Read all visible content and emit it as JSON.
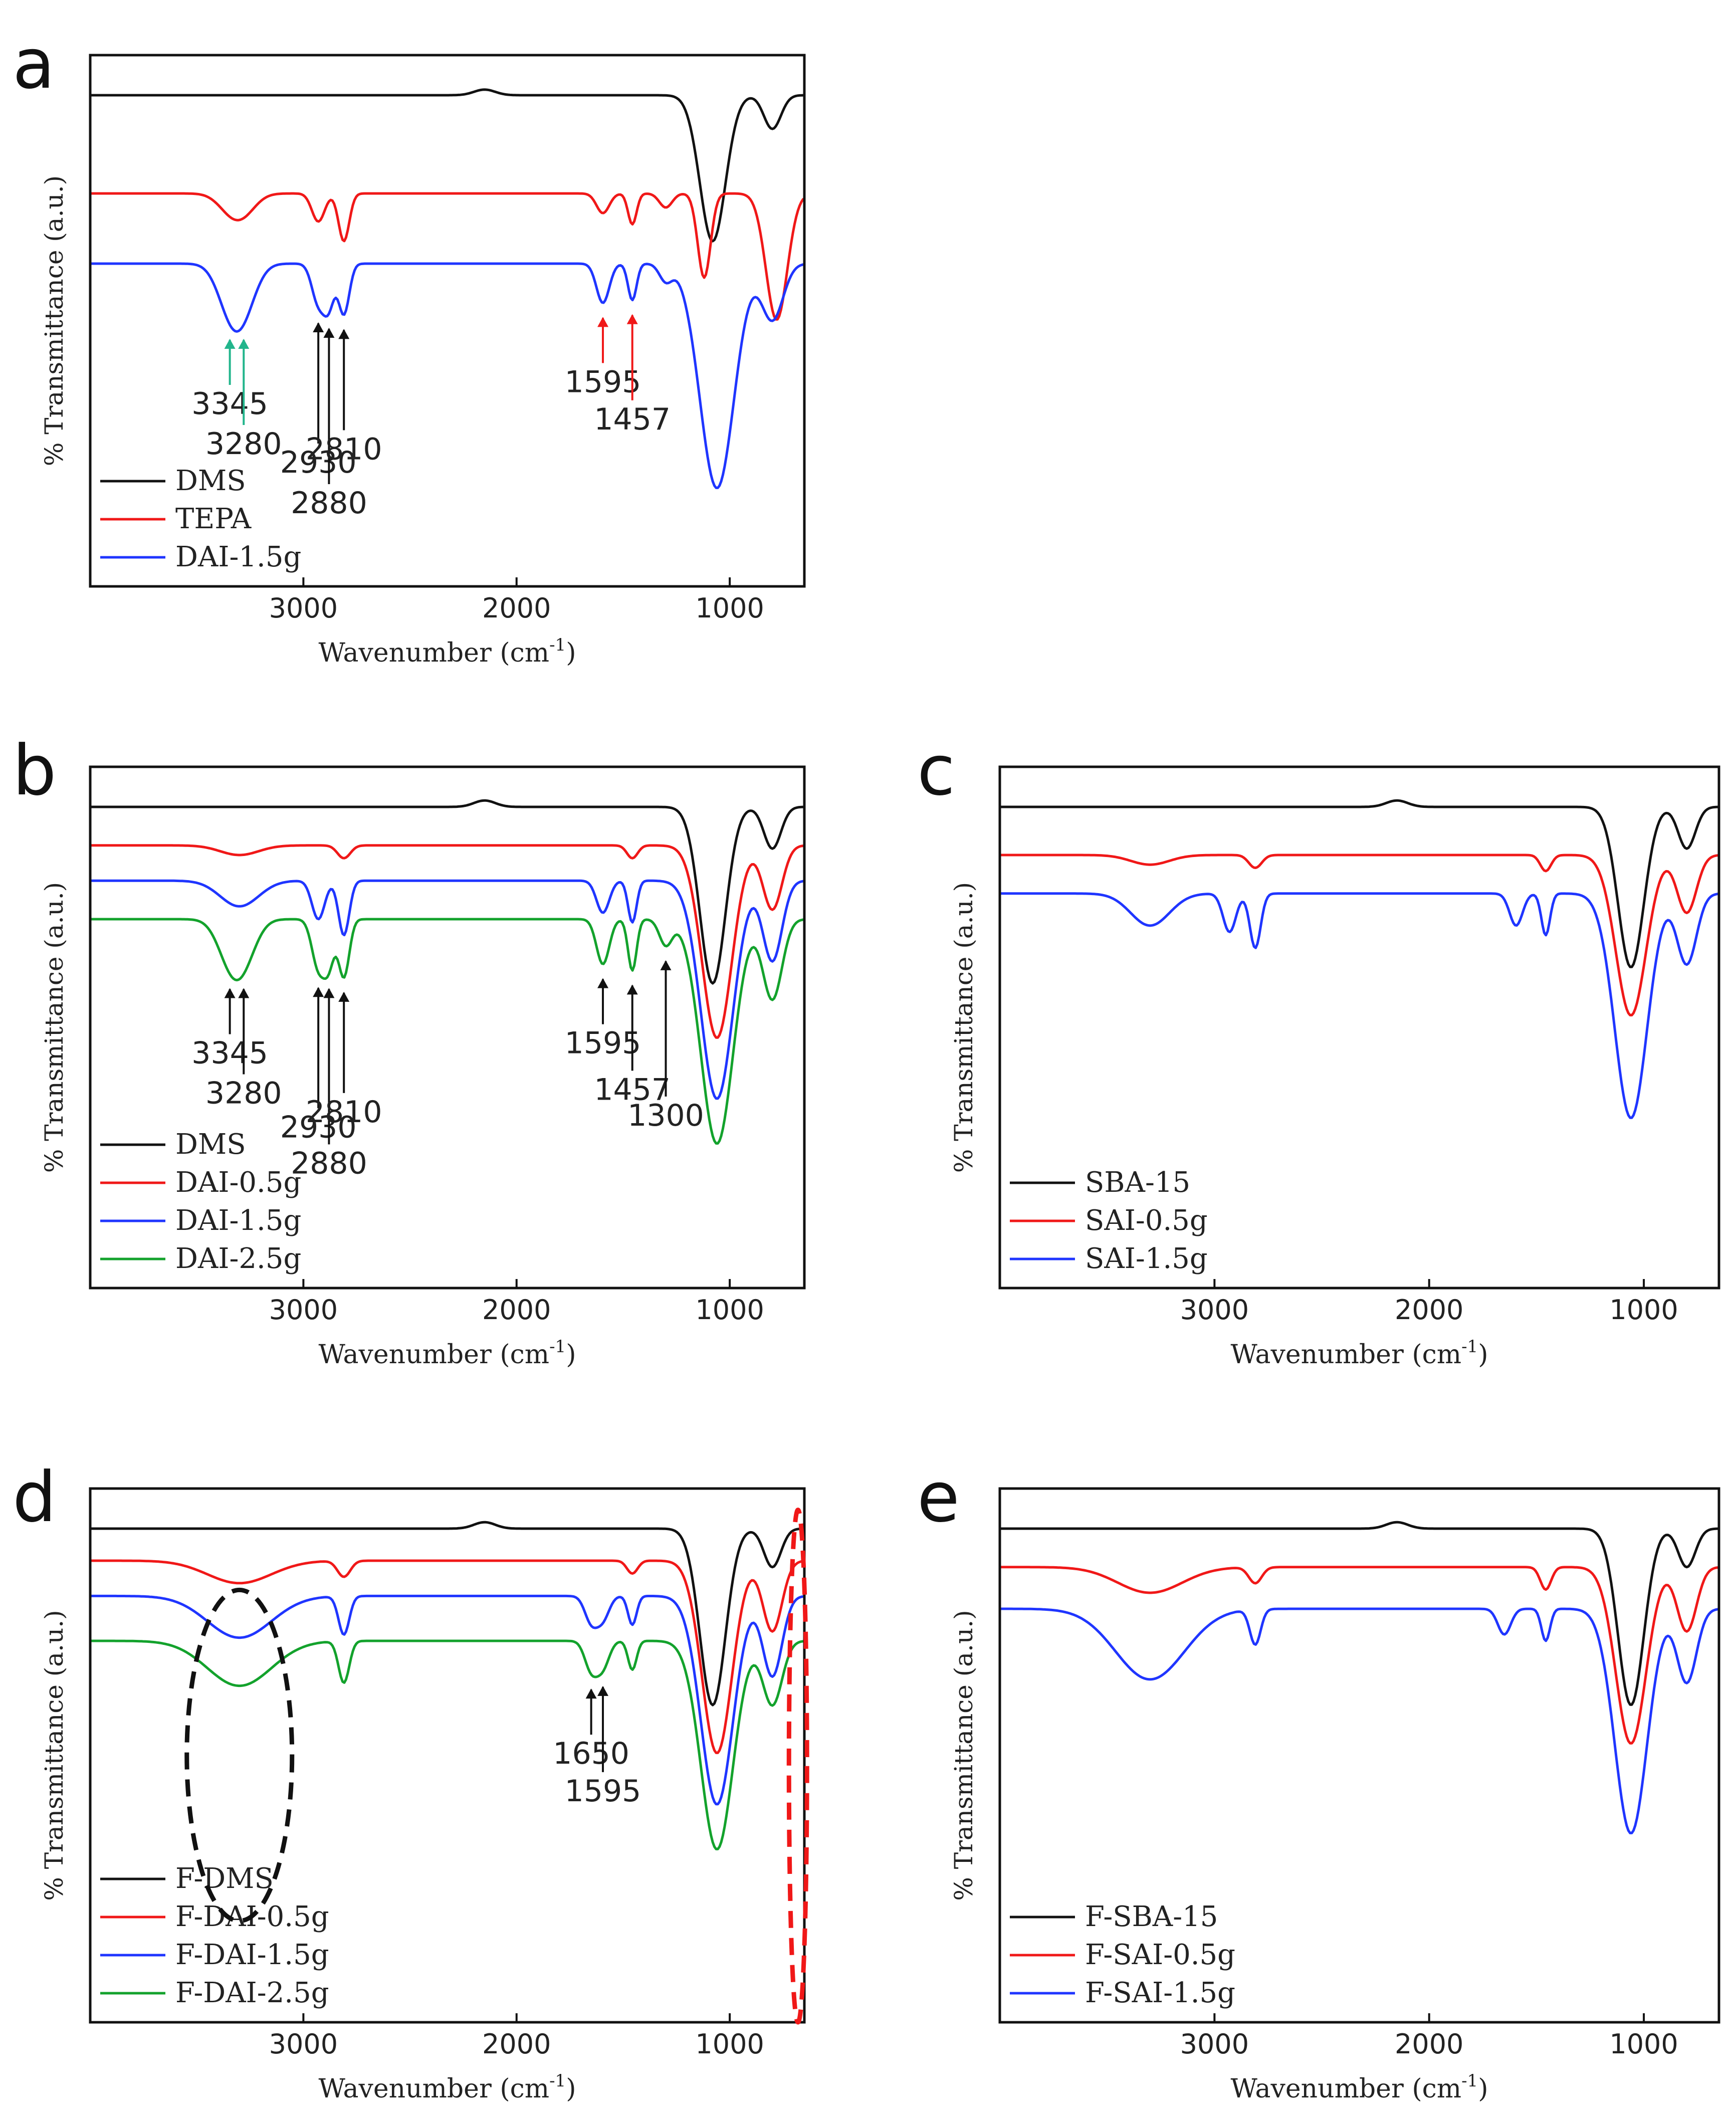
{
  "figure": {
    "x_axis_label": "Wavenumber",
    "x_axis_unit": "(cm",
    "x_axis_unit_sup": "-1",
    "x_axis_unit_close": ")",
    "y_axis_label": "% Transmittance (a.u.)"
  },
  "colors": {
    "black": "#111111",
    "red": "#f01818",
    "blue": "#1f35ff",
    "green": "#13a22c",
    "teal": "#22b58c",
    "ellipse_black": "#111111",
    "ellipse_red": "#f01818"
  },
  "chart_data": [
    {
      "panel": "a",
      "type": "line",
      "xlabel": "Wavenumber (cm-1)",
      "ylabel": "% Transmittance (a.u.)",
      "xlim": [
        4000,
        650
      ],
      "x_reversed": true,
      "xticks": [
        3000,
        2000,
        1000
      ],
      "series": [
        {
          "name": "DMS",
          "color": "black",
          "offset": 0.0,
          "peaks": [
            [
              1080,
              0.52,
              60
            ],
            [
              800,
              0.12,
              40
            ],
            [
              2150,
              -0.02,
              50
            ]
          ]
        },
        {
          "name": "TEPA",
          "color": "red",
          "offset": 0.35,
          "peaks": [
            [
              3345,
              0.05,
              60
            ],
            [
              3280,
              0.06,
              60
            ],
            [
              2930,
              0.1,
              30
            ],
            [
              2810,
              0.17,
              25
            ],
            [
              1595,
              0.07,
              30
            ],
            [
              1457,
              0.11,
              20
            ],
            [
              1300,
              0.05,
              30
            ],
            [
              1120,
              0.3,
              30
            ],
            [
              780,
              0.45,
              50
            ]
          ]
        },
        {
          "name": "DAI-1.5g",
          "color": "blue",
          "offset": 0.6,
          "peaks": [
            [
              3345,
              0.14,
              60
            ],
            [
              3280,
              0.14,
              60
            ],
            [
              2930,
              0.14,
              30
            ],
            [
              2880,
              0.14,
              25
            ],
            [
              2810,
              0.18,
              25
            ],
            [
              1595,
              0.14,
              30
            ],
            [
              1457,
              0.13,
              20
            ],
            [
              1300,
              0.06,
              30
            ],
            [
              1060,
              0.8,
              80
            ],
            [
              800,
              0.2,
              50
            ]
          ]
        }
      ],
      "annotations": [
        {
          "label": "3345",
          "x": 3345,
          "color": "teal"
        },
        {
          "label": "3280",
          "x": 3280,
          "color": "teal"
        },
        {
          "label": "2930",
          "x": 2930,
          "color": "black"
        },
        {
          "label": "2880",
          "x": 2880,
          "color": "black"
        },
        {
          "label": "2810",
          "x": 2810,
          "color": "black"
        },
        {
          "label": "1595",
          "x": 1595,
          "color": "red"
        },
        {
          "label": "1457",
          "x": 1457,
          "color": "red"
        }
      ],
      "legend": [
        "DMS",
        "TEPA",
        "DAI-1.5g"
      ],
      "legend_position": "bottom-left"
    },
    {
      "panel": "b",
      "type": "line",
      "xlabel": "Wavenumber (cm-1)",
      "ylabel": "% Transmittance (a.u.)",
      "xlim": [
        4000,
        650
      ],
      "x_reversed": true,
      "xticks": [
        3000,
        2000,
        1000
      ],
      "series": [
        {
          "name": "DMS",
          "color": "black",
          "offset": 0.0,
          "peaks": [
            [
              1080,
              0.55,
              60
            ],
            [
              800,
              0.13,
              40
            ],
            [
              2150,
              -0.02,
              50
            ]
          ]
        },
        {
          "name": "DAI-0.5g",
          "color": "red",
          "offset": 0.12,
          "peaks": [
            [
              3300,
              0.03,
              90
            ],
            [
              2810,
              0.04,
              30
            ],
            [
              1457,
              0.04,
              25
            ],
            [
              1060,
              0.6,
              70
            ],
            [
              800,
              0.2,
              45
            ]
          ]
        },
        {
          "name": "DAI-1.5g",
          "color": "blue",
          "offset": 0.23,
          "peaks": [
            [
              3300,
              0.08,
              90
            ],
            [
              2930,
              0.12,
              30
            ],
            [
              2810,
              0.17,
              25
            ],
            [
              1595,
              0.1,
              30
            ],
            [
              1457,
              0.13,
              20
            ],
            [
              1060,
              0.68,
              75
            ],
            [
              800,
              0.25,
              45
            ]
          ]
        },
        {
          "name": "DAI-2.5g",
          "color": "green",
          "offset": 0.35,
          "peaks": [
            [
              3345,
              0.11,
              60
            ],
            [
              3280,
              0.11,
              60
            ],
            [
              2930,
              0.15,
              30
            ],
            [
              2880,
              0.13,
              25
            ],
            [
              2810,
              0.18,
              25
            ],
            [
              1595,
              0.14,
              30
            ],
            [
              1457,
              0.16,
              20
            ],
            [
              1300,
              0.08,
              30
            ],
            [
              1060,
              0.7,
              75
            ],
            [
              800,
              0.25,
              45
            ]
          ]
        }
      ],
      "annotations": [
        {
          "label": "3345",
          "x": 3345,
          "color": "black"
        },
        {
          "label": "3280",
          "x": 3280,
          "color": "black"
        },
        {
          "label": "2930",
          "x": 2930,
          "color": "black"
        },
        {
          "label": "2880",
          "x": 2880,
          "color": "black"
        },
        {
          "label": "2810",
          "x": 2810,
          "color": "black"
        },
        {
          "label": "1595",
          "x": 1595,
          "color": "black"
        },
        {
          "label": "1457",
          "x": 1457,
          "color": "black"
        },
        {
          "label": "1300",
          "x": 1300,
          "color": "black"
        }
      ],
      "legend": [
        "DMS",
        "DAI-0.5g",
        "DAI-1.5g",
        "DAI-2.5g"
      ],
      "legend_position": "bottom-left"
    },
    {
      "panel": "c",
      "type": "line",
      "xlabel": "Wavenumber (cm-1)",
      "ylabel": "% Transmittance (a.u.)",
      "xlim": [
        4000,
        650
      ],
      "x_reversed": true,
      "xticks": [
        3000,
        2000,
        1000
      ],
      "series": [
        {
          "name": "SBA-15",
          "color": "black",
          "offset": 0.0,
          "peaks": [
            [
              1060,
              0.5,
              60
            ],
            [
              800,
              0.13,
              40
            ],
            [
              2150,
              -0.02,
              50
            ]
          ]
        },
        {
          "name": "SAI-0.5g",
          "color": "red",
          "offset": 0.15,
          "peaks": [
            [
              3300,
              0.03,
              90
            ],
            [
              2810,
              0.04,
              30
            ],
            [
              1457,
              0.05,
              25
            ],
            [
              1060,
              0.5,
              70
            ],
            [
              800,
              0.18,
              45
            ]
          ]
        },
        {
          "name": "SAI-1.5g",
          "color": "blue",
          "offset": 0.27,
          "peaks": [
            [
              3300,
              0.1,
              90
            ],
            [
              2930,
              0.12,
              30
            ],
            [
              2810,
              0.17,
              25
            ],
            [
              1595,
              0.1,
              30
            ],
            [
              1457,
              0.13,
              20
            ],
            [
              1060,
              0.7,
              75
            ],
            [
              800,
              0.22,
              45
            ]
          ]
        }
      ],
      "annotations": [],
      "legend": [
        "SBA-15",
        "SAI-0.5g",
        "SAI-1.5g"
      ],
      "legend_position": "bottom-left"
    },
    {
      "panel": "d",
      "type": "line",
      "xlabel": "Wavenumber (cm-1)",
      "ylabel": "% Transmittance (a.u.)",
      "xlim": [
        4000,
        650
      ],
      "x_reversed": true,
      "xticks": [
        3000,
        2000,
        1000
      ],
      "series": [
        {
          "name": "F-DMS",
          "color": "black",
          "offset": 0.0,
          "peaks": [
            [
              1080,
              0.55,
              60
            ],
            [
              800,
              0.12,
              40
            ],
            [
              2150,
              -0.02,
              50
            ]
          ]
        },
        {
          "name": "F-DAI-0.5g",
          "color": "red",
          "offset": 0.1,
          "peaks": [
            [
              3300,
              0.07,
              150
            ],
            [
              2810,
              0.05,
              30
            ],
            [
              1457,
              0.04,
              25
            ],
            [
              1060,
              0.6,
              70
            ],
            [
              800,
              0.22,
              45
            ]
          ]
        },
        {
          "name": "F-DAI-1.5g",
          "color": "blue",
          "offset": 0.21,
          "peaks": [
            [
              3300,
              0.13,
              150
            ],
            [
              2810,
              0.12,
              25
            ],
            [
              1650,
              0.08,
              30
            ],
            [
              1595,
              0.07,
              30
            ],
            [
              1457,
              0.09,
              20
            ],
            [
              1060,
              0.65,
              75
            ],
            [
              800,
              0.25,
              45
            ]
          ]
        },
        {
          "name": "F-DAI-2.5g",
          "color": "green",
          "offset": 0.35,
          "peaks": [
            [
              3300,
              0.14,
              150
            ],
            [
              2810,
              0.13,
              25
            ],
            [
              1650,
              0.09,
              30
            ],
            [
              1595,
              0.08,
              30
            ],
            [
              1457,
              0.09,
              20
            ],
            [
              1060,
              0.65,
              75
            ],
            [
              800,
              0.2,
              45
            ]
          ]
        }
      ],
      "annotations": [
        {
          "label": "1650",
          "x": 1650,
          "color": "black"
        },
        {
          "label": "1595",
          "x": 1595,
          "color": "black"
        }
      ],
      "highlights": [
        {
          "shape": "ellipse",
          "center_x": 3300,
          "color": "ellipse_black",
          "style": "dashed"
        },
        {
          "shape": "ellipse",
          "center_x": 680,
          "color": "ellipse_red",
          "style": "dashed"
        }
      ],
      "legend": [
        "F-DMS",
        "F-DAI-0.5g",
        "F-DAI-1.5g",
        "F-DAI-2.5g"
      ],
      "legend_position": "bottom-left"
    },
    {
      "panel": "e",
      "type": "line",
      "xlabel": "Wavenumber (cm-1)",
      "ylabel": "% Transmittance (a.u.)",
      "xlim": [
        4000,
        650
      ],
      "x_reversed": true,
      "xticks": [
        3000,
        2000,
        1000
      ],
      "series": [
        {
          "name": "F-SBA-15",
          "color": "black",
          "offset": 0.0,
          "peaks": [
            [
              1060,
              0.55,
              60
            ],
            [
              800,
              0.12,
              40
            ],
            [
              2150,
              -0.02,
              50
            ]
          ]
        },
        {
          "name": "F-SAI-0.5g",
          "color": "red",
          "offset": 0.12,
          "peaks": [
            [
              3300,
              0.08,
              150
            ],
            [
              2810,
              0.05,
              30
            ],
            [
              1457,
              0.07,
              25
            ],
            [
              1060,
              0.55,
              70
            ],
            [
              800,
              0.2,
              45
            ]
          ]
        },
        {
          "name": "F-SAI-1.5g",
          "color": "blue",
          "offset": 0.25,
          "peaks": [
            [
              3300,
              0.22,
              160
            ],
            [
              2810,
              0.11,
              25
            ],
            [
              1650,
              0.08,
              30
            ],
            [
              1457,
              0.1,
              20
            ],
            [
              1060,
              0.7,
              75
            ],
            [
              800,
              0.23,
              45
            ]
          ]
        }
      ],
      "annotations": [],
      "legend": [
        "F-SBA-15",
        "F-SAI-0.5g",
        "F-SAI-1.5g"
      ],
      "legend_position": "bottom-left"
    }
  ]
}
